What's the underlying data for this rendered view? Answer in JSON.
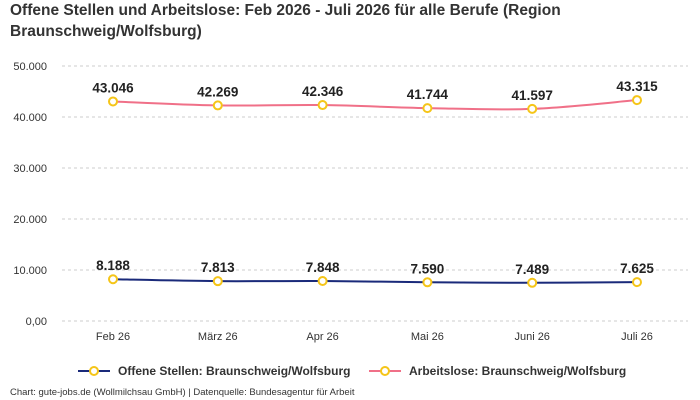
{
  "chart_data": {
    "type": "line",
    "title": "Offene Stellen und Arbeitslose: Feb 2026 - Juli 2026 für alle Berufe (Region Braunschweig/Wolfsburg)",
    "categories": [
      "Feb 26",
      "März 26",
      "Apr 26",
      "Mai 26",
      "Juni 26",
      "Juli 26"
    ],
    "series": [
      {
        "name": "Offene Stellen: Braunschweig/Wolfsburg",
        "values": [
          8188,
          7813,
          7848,
          7590,
          7489,
          7625
        ],
        "labels": [
          "8.188",
          "7.813",
          "7.848",
          "7.590",
          "7.489",
          "7.625"
        ],
        "color": "#1a2a7a"
      },
      {
        "name": "Arbeitslose: Braunschweig/Wolfsburg",
        "values": [
          43046,
          42269,
          42346,
          41744,
          41597,
          43315
        ],
        "labels": [
          "43.046",
          "42.269",
          "42.346",
          "41.744",
          "41.597",
          "43.315"
        ],
        "color": "#f07088"
      }
    ],
    "y_ticks": [
      0,
      10000,
      20000,
      30000,
      40000,
      50000
    ],
    "y_tick_labels": [
      "0,00",
      "10.000",
      "20.000",
      "30.000",
      "40.000",
      "50.000"
    ],
    "ylim": [
      0,
      50000
    ],
    "grid": true,
    "legend_position": "bottom",
    "marker_color": "#f5c518"
  },
  "footer": "Chart: gute-jobs.de (Wollmilchsau GmbH) | Datenquelle: Bundesagentur für Arbeit"
}
